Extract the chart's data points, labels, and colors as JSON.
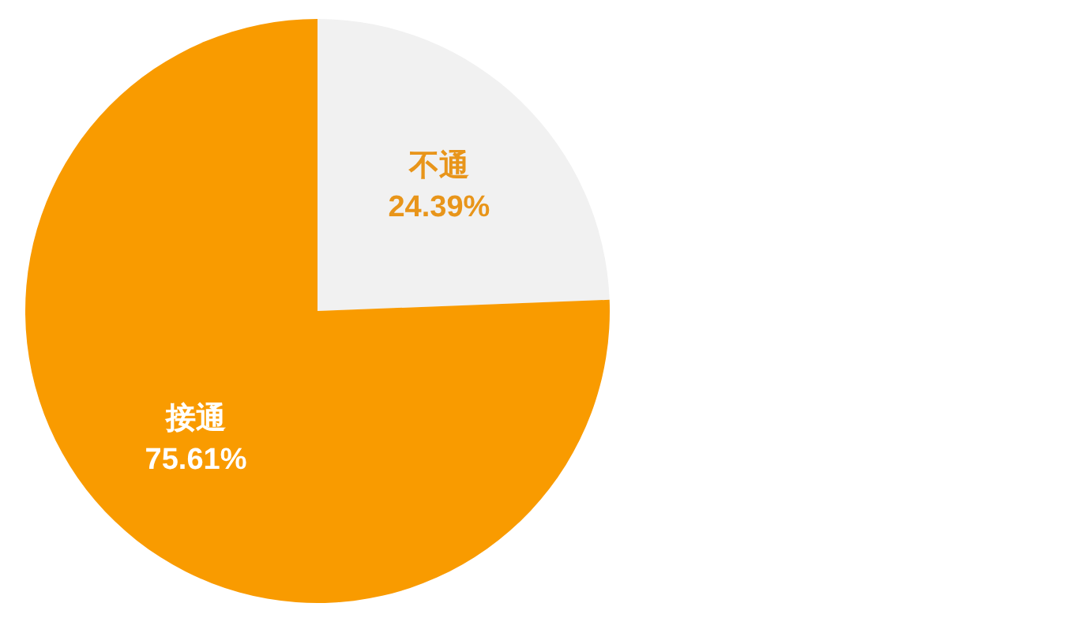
{
  "chart_data": {
    "type": "pie",
    "categories": [
      "不通",
      "接通"
    ],
    "values": [
      24.39,
      75.61
    ],
    "colors": [
      "#f1f1f1",
      "#f99b00"
    ],
    "value_labels": [
      "24.39%",
      "75.61%"
    ]
  }
}
